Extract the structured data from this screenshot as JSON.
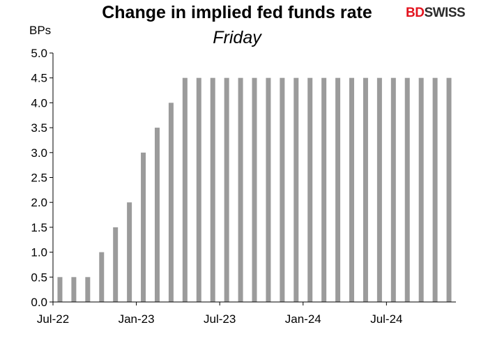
{
  "chart_data": {
    "type": "bar",
    "title": "Change in implied fed funds rate",
    "subtitle": "Friday",
    "ylabel": "BPs",
    "ylim": [
      0,
      5
    ],
    "yticks": [
      "0.0",
      "0.5",
      "1.0",
      "1.5",
      "2.0",
      "2.5",
      "3.0",
      "3.5",
      "4.0",
      "4.5",
      "5.0"
    ],
    "xtick_labels": [
      "Jul-22",
      "Jan-23",
      "Jul-23",
      "Jan-24",
      "Jul-24"
    ],
    "grid": false,
    "legend": "none",
    "bar_color": "#9b9b9b",
    "values": [
      0.5,
      0.5,
      0.5,
      1.0,
      1.5,
      2.0,
      3.0,
      3.5,
      4.0,
      4.5,
      4.5,
      4.5,
      4.5,
      4.5,
      4.5,
      4.5,
      4.5,
      4.5,
      4.5,
      4.5,
      4.5,
      4.5,
      4.5,
      4.5,
      4.5,
      4.5,
      4.5,
      4.5,
      4.5
    ]
  },
  "logo": {
    "part1": "BD",
    "part2": "SWISS"
  }
}
